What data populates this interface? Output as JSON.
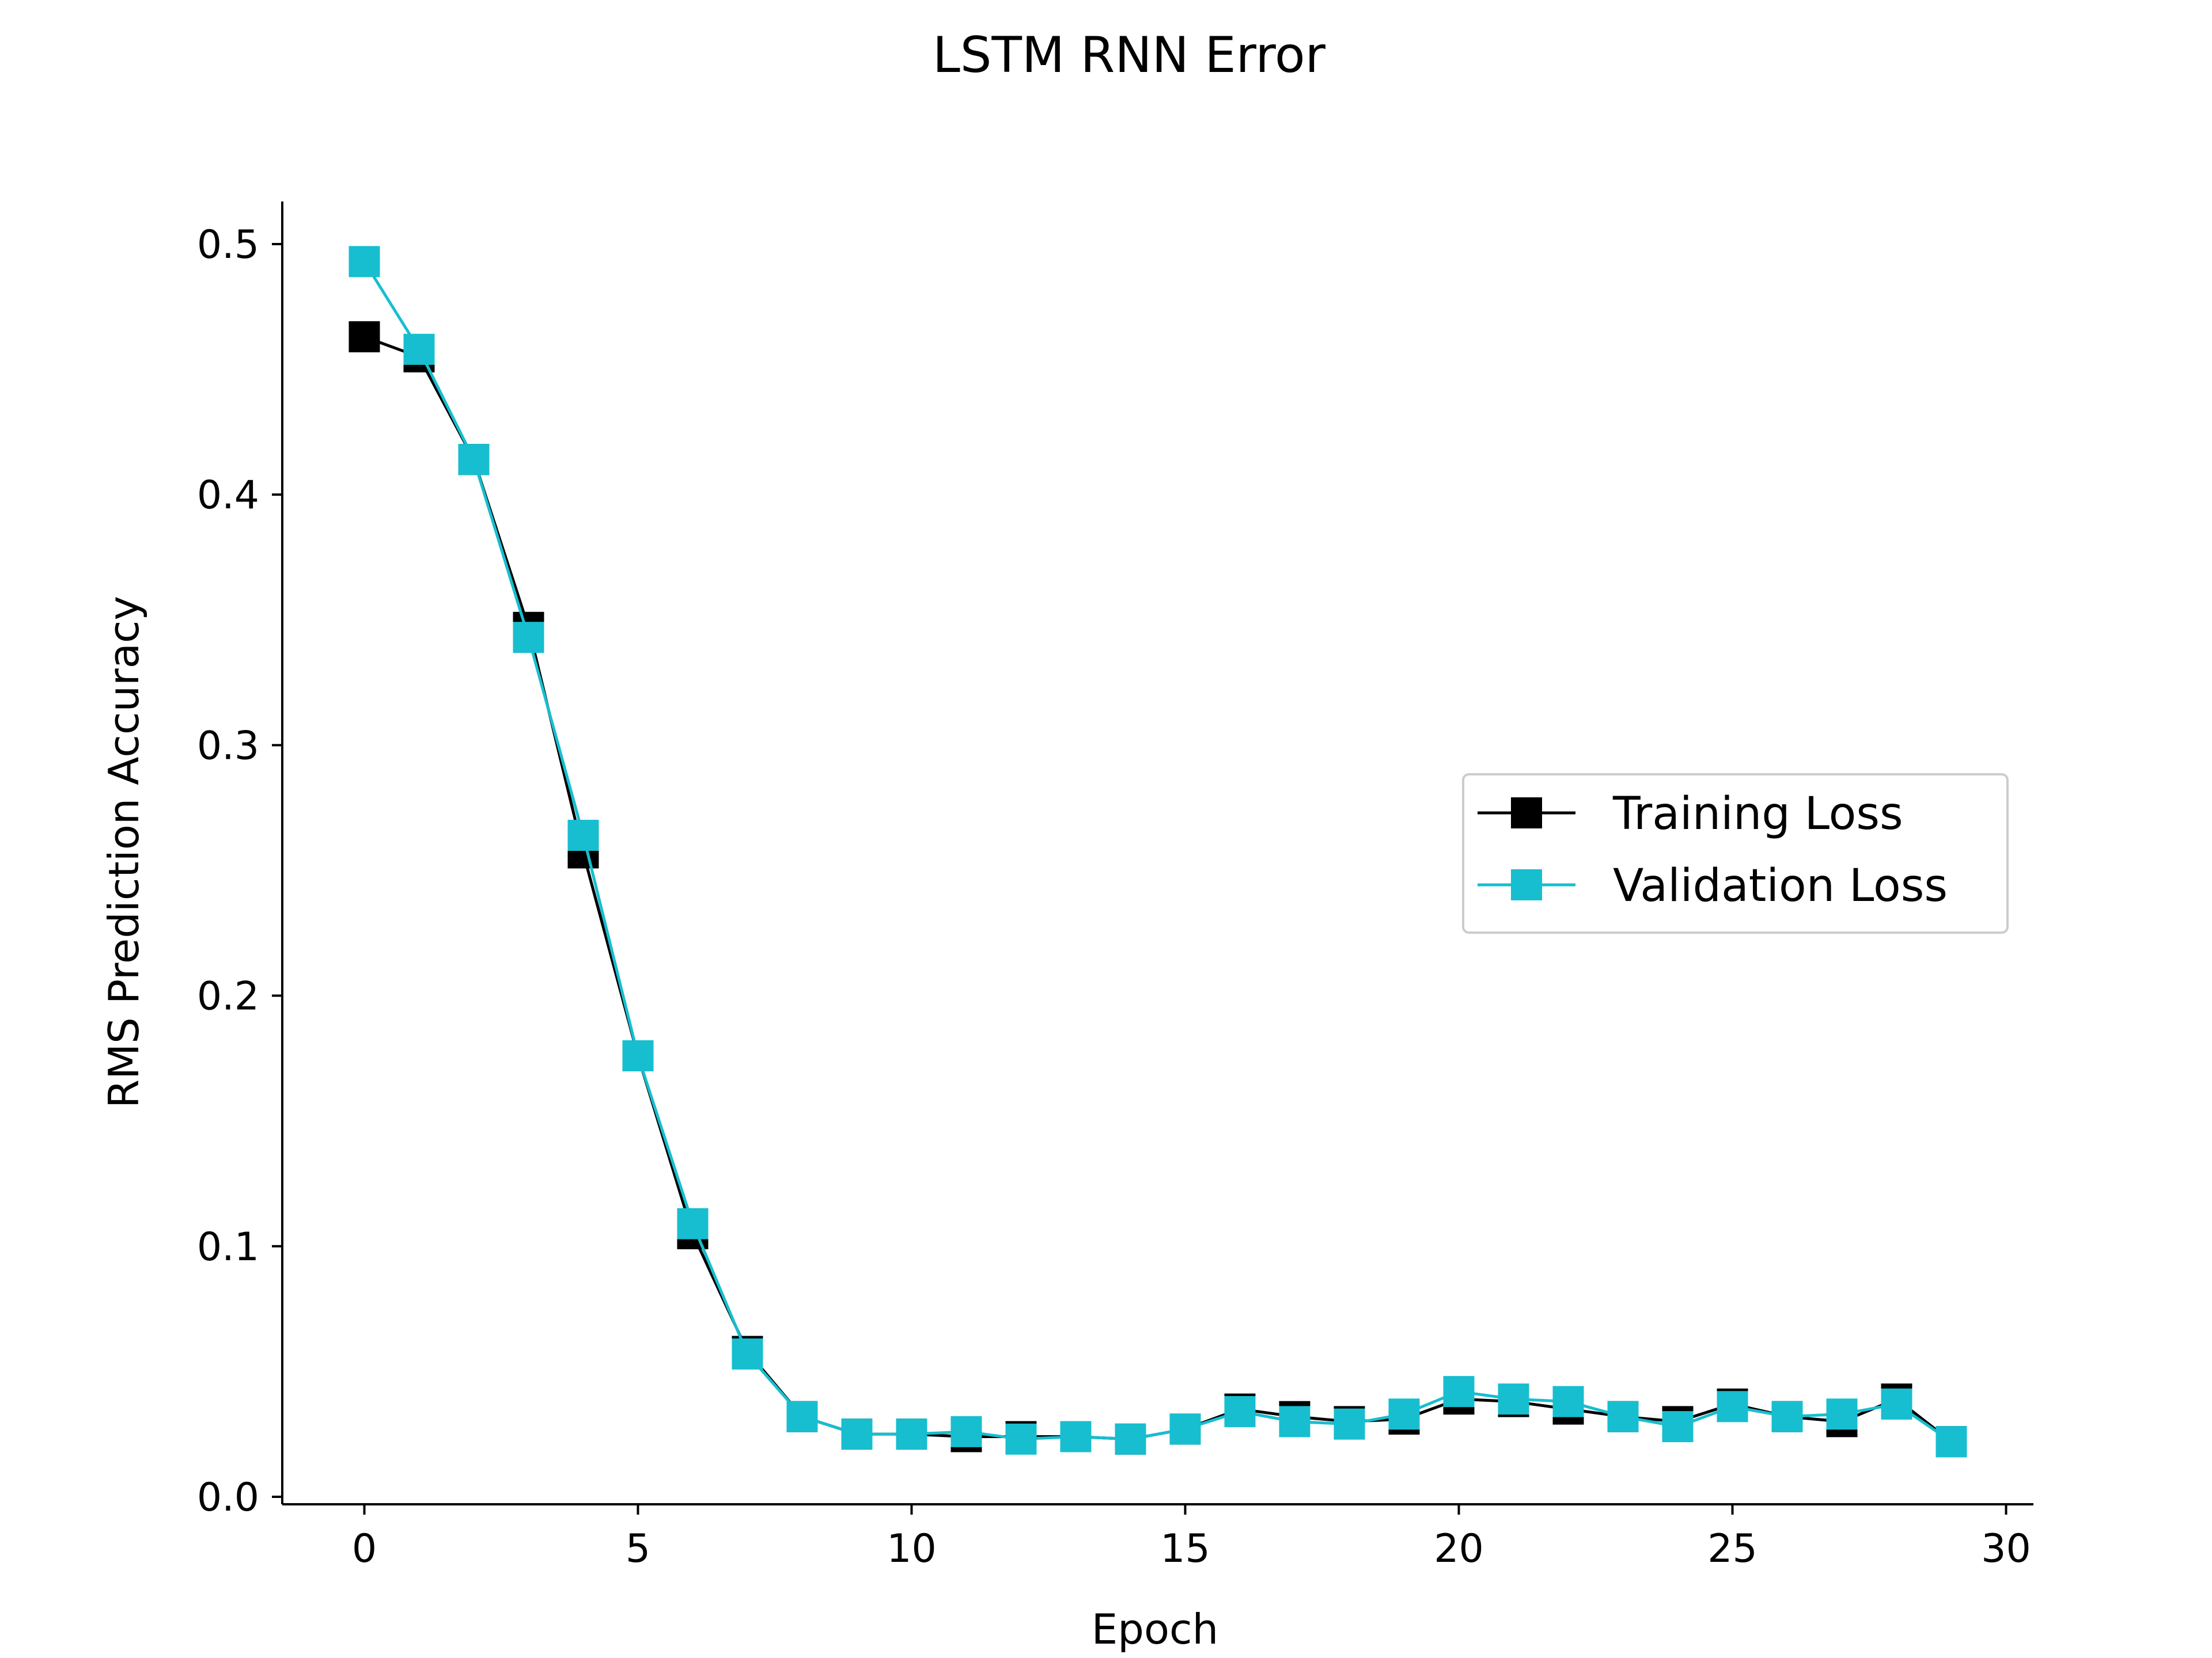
{
  "chart_data": {
    "type": "line",
    "title": "LSTM RNN Error",
    "xlabel": "Epoch",
    "ylabel": "RMS Prediction Accuracy",
    "xlim": [
      -1.5,
      30.5
    ],
    "ylim": [
      -0.003,
      0.517
    ],
    "xticks": [
      0,
      5,
      10,
      15,
      20,
      25,
      30
    ],
    "yticks": [
      0.0,
      0.1,
      0.2,
      0.3,
      0.4,
      0.5
    ],
    "grid": false,
    "legend_position": "center-right",
    "x": [
      0,
      1,
      2,
      3,
      4,
      5,
      6,
      7,
      8,
      9,
      10,
      11,
      12,
      13,
      14,
      15,
      16,
      17,
      18,
      19,
      20,
      21,
      22,
      23,
      24,
      25,
      26,
      27,
      28,
      29
    ],
    "series": [
      {
        "name": "Training Loss",
        "color": "#000000",
        "marker": "square",
        "values": [
          0.463,
          0.455,
          0.414,
          0.347,
          0.257,
          0.176,
          0.105,
          0.058,
          0.032,
          0.025,
          0.025,
          0.024,
          0.024,
          0.024,
          0.023,
          0.027,
          0.035,
          0.032,
          0.03,
          0.031,
          0.039,
          0.038,
          0.035,
          0.032,
          0.03,
          0.037,
          0.032,
          0.03,
          0.039,
          0.022
        ]
      },
      {
        "name": "Validation Loss",
        "color": "#17becf",
        "marker": "square",
        "values": [
          0.493,
          0.458,
          0.414,
          0.343,
          0.264,
          0.176,
          0.109,
          0.057,
          0.032,
          0.025,
          0.025,
          0.026,
          0.023,
          0.024,
          0.023,
          0.027,
          0.034,
          0.03,
          0.029,
          0.033,
          0.042,
          0.039,
          0.038,
          0.032,
          0.028,
          0.036,
          0.032,
          0.033,
          0.037,
          0.022
        ]
      }
    ]
  }
}
